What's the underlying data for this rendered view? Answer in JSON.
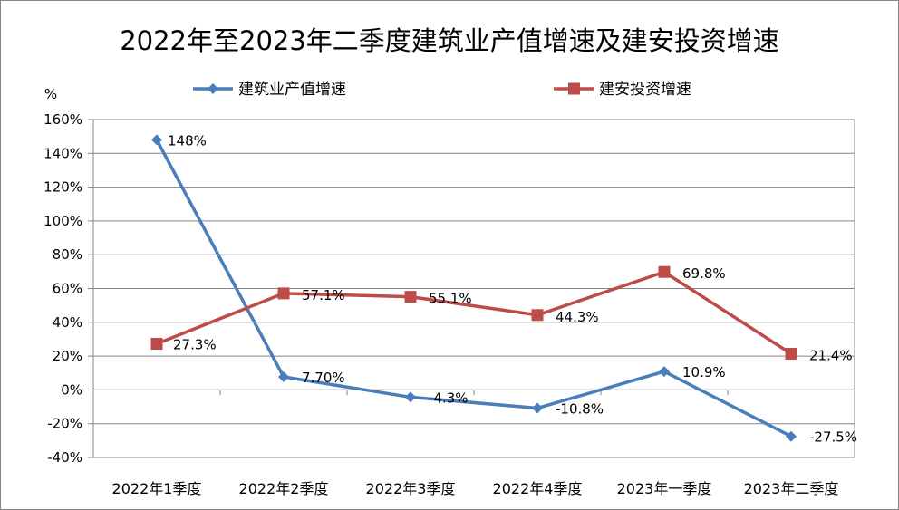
{
  "chart_data": {
    "type": "line",
    "title": "2022年至2023年二季度建筑业产值增速及建安投资增速",
    "ylabel": "%",
    "categories": [
      "2022年1季度",
      "2022年2季度",
      "2022年3季度",
      "2022年4季度",
      "2023年一季度",
      "2023年二季度"
    ],
    "ylim": [
      -40,
      160
    ],
    "yticks": [
      "160%",
      "140%",
      "120%",
      "100%",
      "80%",
      "60%",
      "40%",
      "20%",
      "0%",
      "-20%",
      "-40%"
    ],
    "legend_position": "top",
    "grid": true,
    "series": [
      {
        "name": "建筑业产值增速",
        "color": "#4A7EBB",
        "marker": "diamond",
        "values": [
          148,
          7.7,
          -4.3,
          -10.8,
          10.9,
          -27.5
        ],
        "labels": [
          "148%",
          "7.70%",
          "-4.3%",
          "-10.8%",
          "10.9%",
          "-27.5%"
        ]
      },
      {
        "name": "建安投资增速",
        "color": "#BE4B48",
        "marker": "square",
        "values": [
          27.3,
          57.1,
          55.1,
          44.3,
          69.8,
          21.4
        ],
        "labels": [
          "27.3%",
          "57.1%",
          "55.1%",
          "44.3%",
          "69.8%",
          "21.4%"
        ]
      }
    ]
  }
}
